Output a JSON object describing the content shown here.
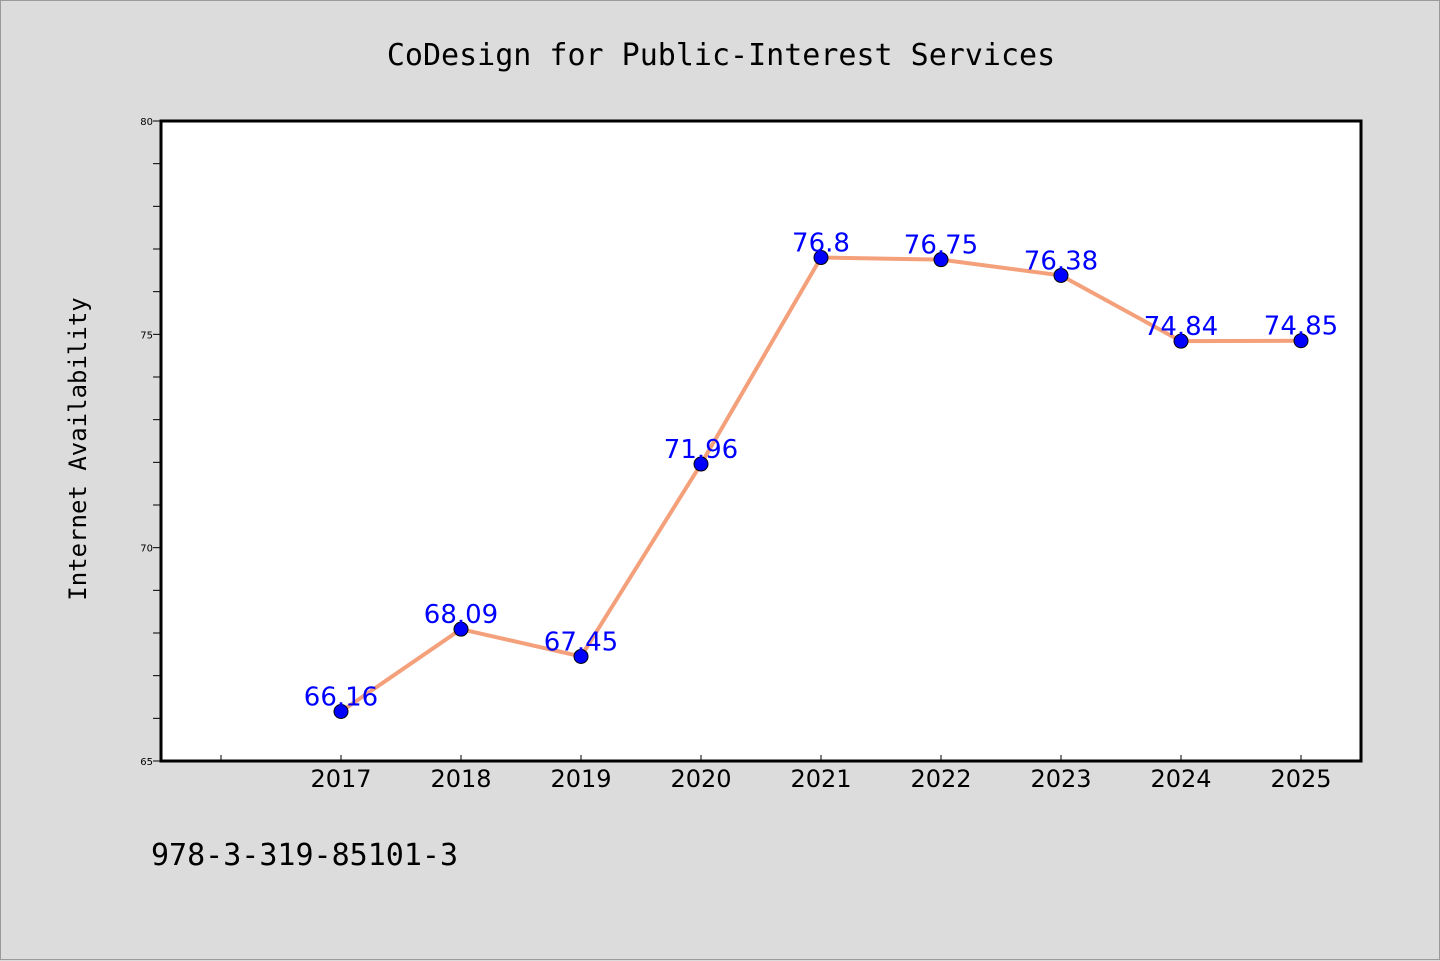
{
  "chart_data": {
    "type": "line",
    "title": "CoDesign for Public-Interest Services",
    "xlabel": "",
    "ylabel": "Internet Availability",
    "categories": [
      "2017",
      "2018",
      "2019",
      "2020",
      "2021",
      "2022",
      "2023",
      "2024",
      "2025"
    ],
    "series": [
      {
        "values": [
          66.16,
          68.09,
          67.45,
          71.96,
          76.8,
          76.75,
          76.38,
          74.84,
          74.85
        ],
        "data_labels": [
          "66.16",
          "68.09",
          "67.45",
          "71.96",
          "76.8",
          "76.75",
          "76.38",
          "74.84",
          "74.85"
        ]
      }
    ],
    "ylim": [
      65,
      80
    ],
    "yticks": [
      65,
      70,
      75,
      80
    ],
    "ytick_labels": [
      "65",
      "70",
      "75",
      "80"
    ],
    "grid": false,
    "colors": {
      "line": "#f4a07a",
      "marker": "#0000ff",
      "label": "#0000ff",
      "background": "#dcdcdc",
      "plot_bg": "#ffffff"
    }
  },
  "footnote": "978-3-319-85101-3"
}
